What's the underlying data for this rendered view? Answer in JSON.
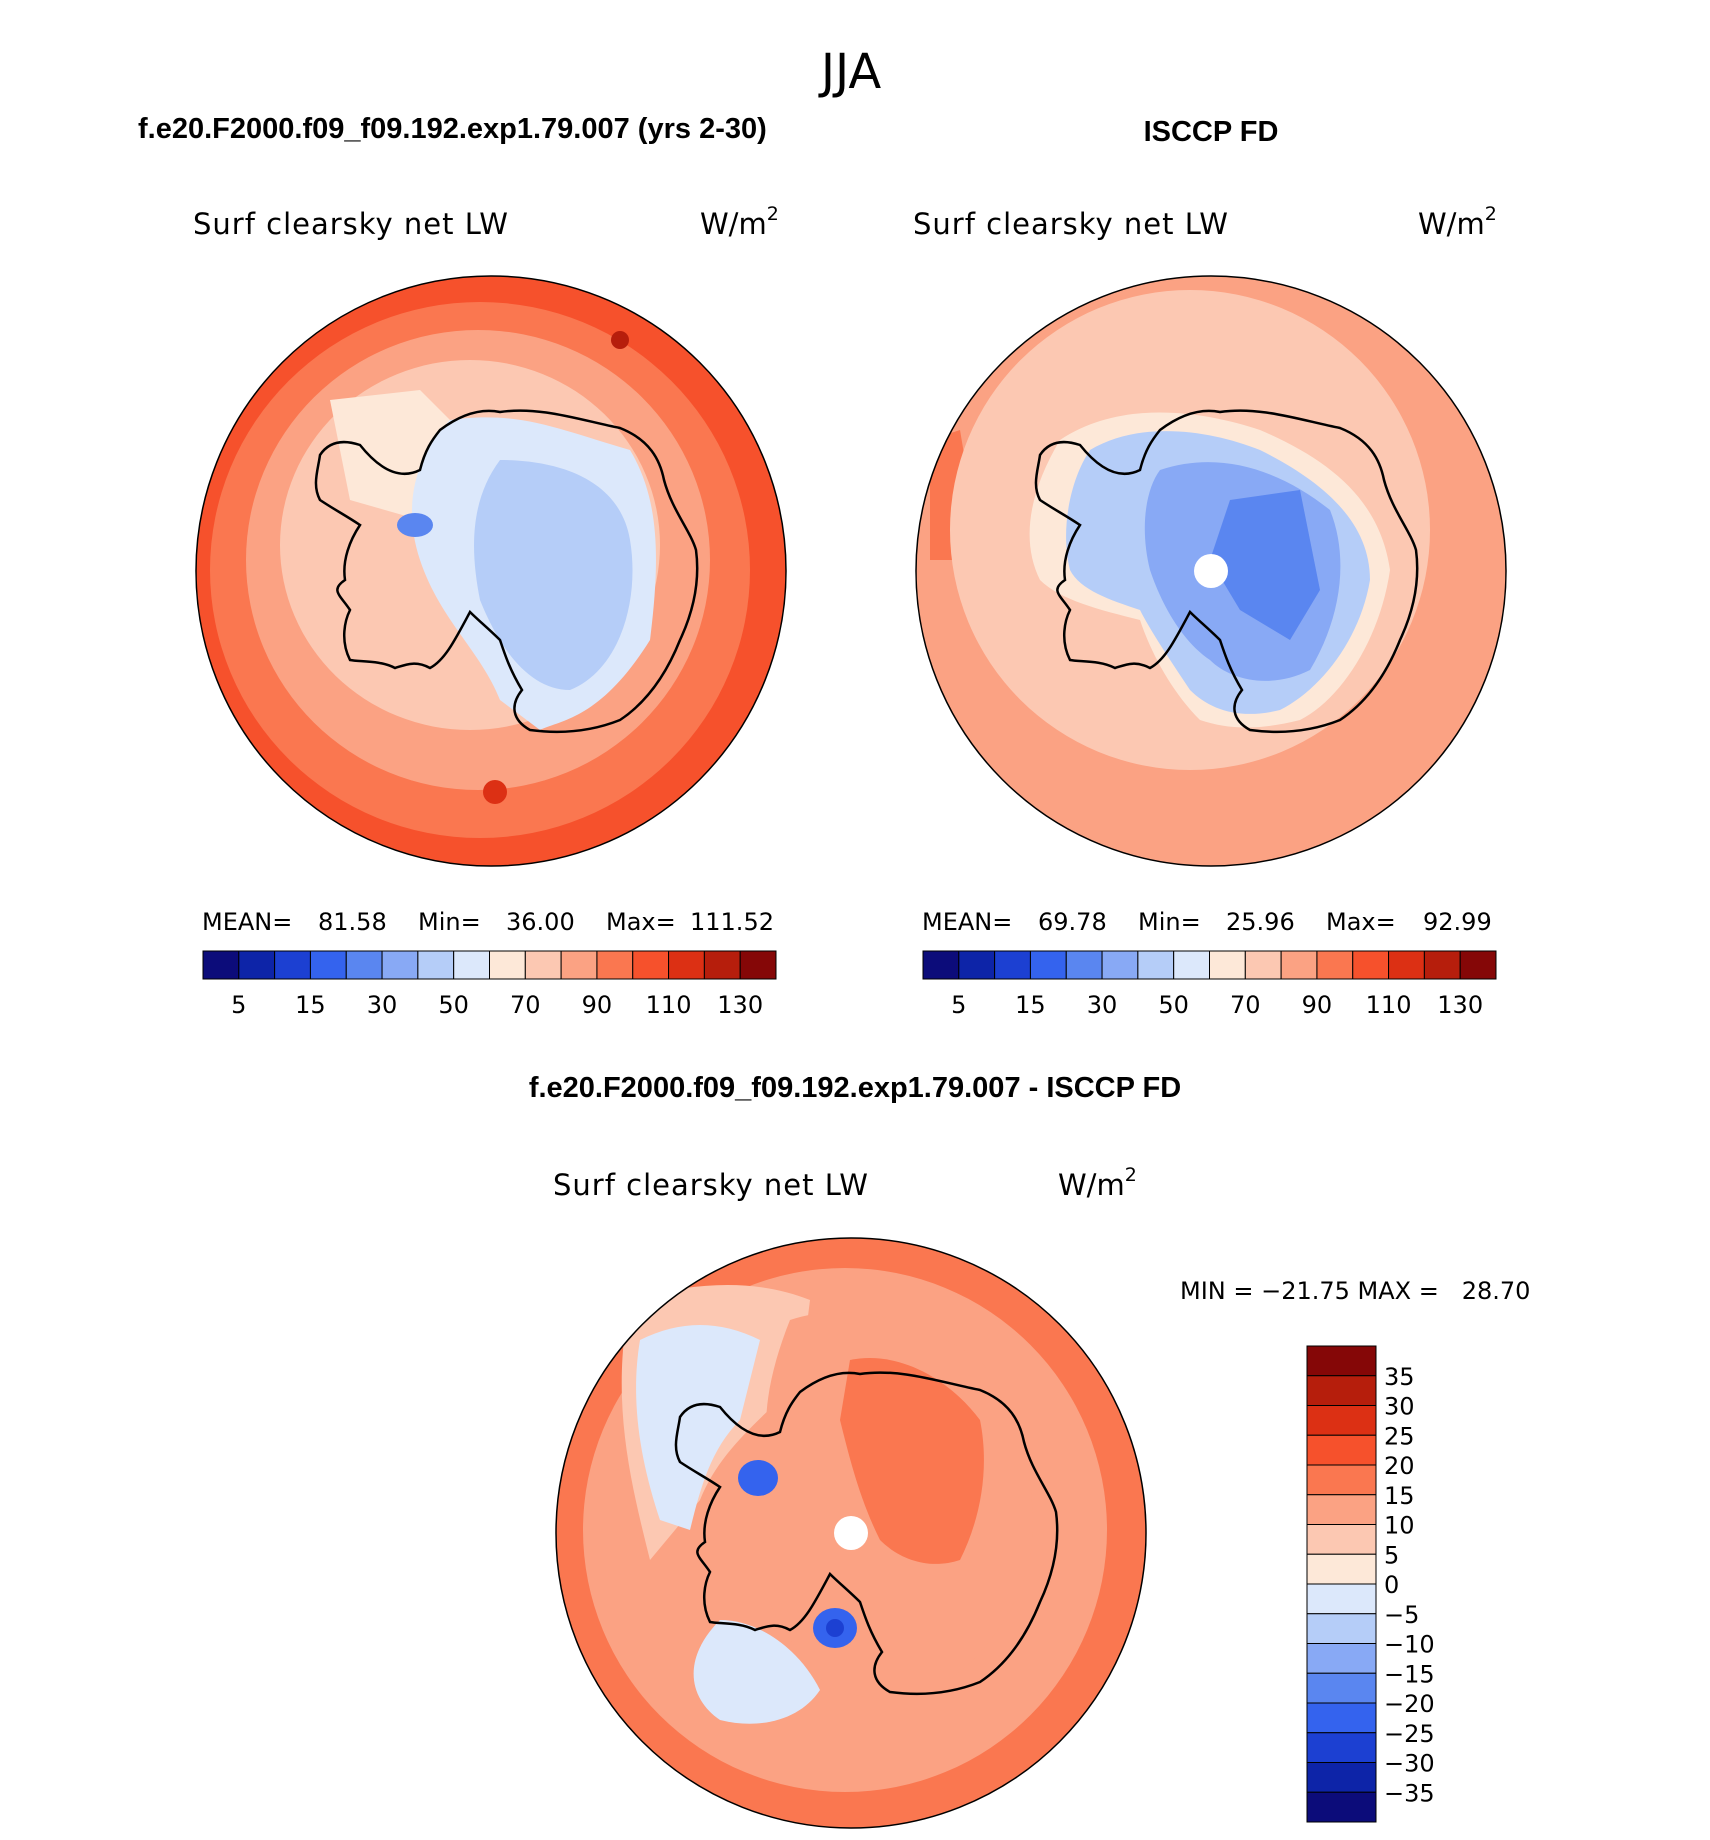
{
  "page": {
    "season": "JJA"
  },
  "panels": [
    {
      "id": "model",
      "case_title": "f.e20.F2000.f09_f09.192.exp1.79.007 (yrs 2-30)",
      "variable": "Surf clearsky net LW",
      "units": "W/m",
      "units_exp": "2",
      "stats": {
        "mean_label": "MEAN=",
        "mean": "81.58",
        "min_label": "Min=",
        "min": "36.00",
        "max_label": "Max=",
        "max": "111.52"
      },
      "has_pole_hole": false
    },
    {
      "id": "obs",
      "case_title": "ISCCP FD",
      "variable": "Surf clearsky net LW",
      "units": "W/m",
      "units_exp": "2",
      "stats": {
        "mean_label": "MEAN=",
        "mean": "69.78",
        "min_label": "Min=",
        "min": "25.96",
        "max_label": "Max=",
        "max": "92.99"
      },
      "has_pole_hole": true
    }
  ],
  "diff_panel": {
    "case_title": "f.e20.F2000.f09_f09.192.exp1.79.007 - ISCCP FD",
    "variable": "Surf clearsky net LW",
    "units": "W/m",
    "units_exp": "2",
    "minmax": "MIN = −21.75 MAX =   28.70",
    "has_pole_hole": true
  },
  "abs_colorbar": {
    "colors": [
      "#0c0c7a",
      "#0d24a8",
      "#1c40d2",
      "#3463ee",
      "#5a86f0",
      "#88a9f5",
      "#b5cdf8",
      "#dce8fb",
      "#fde8d8",
      "#fcc8b2",
      "#fba283",
      "#fa7750",
      "#f6512c",
      "#dc3014",
      "#b61e0c",
      "#850707"
    ],
    "labels": [
      "5",
      "15",
      "30",
      "50",
      "70",
      "90",
      "110",
      "130"
    ]
  },
  "diff_colorbar": {
    "colors": [
      "#850707",
      "#b61e0c",
      "#dc3014",
      "#f6512c",
      "#fa7750",
      "#fba283",
      "#fcc8b2",
      "#fde8d8",
      "#dce8fb",
      "#b5cdf8",
      "#88a9f5",
      "#5a86f0",
      "#3463ee",
      "#1c40d2",
      "#0d24a8",
      "#0c0c7a"
    ],
    "labels": [
      "35",
      "30",
      "25",
      "20",
      "15",
      "10",
      "5",
      "0",
      "−5",
      "−10",
      "−15",
      "−20",
      "−25",
      "−30",
      "−35"
    ]
  }
}
